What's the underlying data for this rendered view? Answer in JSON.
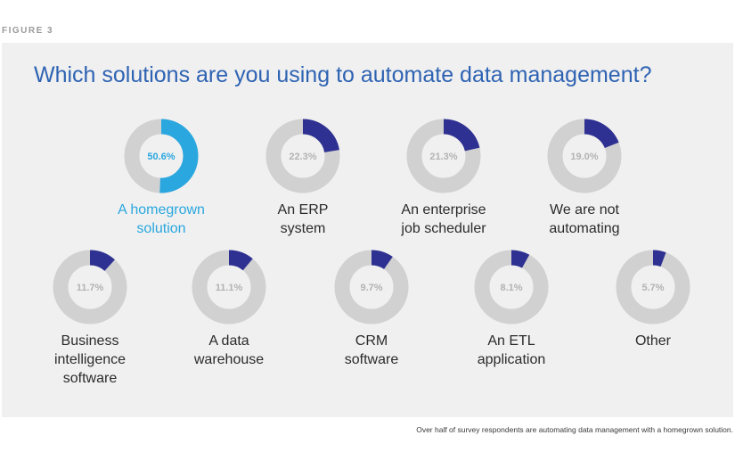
{
  "figure_label": "FIGURE 3",
  "caption": "Over half of survey respondents are automating data management with a homegrown solution.",
  "chart_data": {
    "type": "pie",
    "title": "Which solutions are you using to automate data management?",
    "unit": "%",
    "colors": {
      "highlight": "#2aa7df",
      "value": "#2e3192",
      "remainder": "#d1d1d1",
      "value_text": "#b3b3b3",
      "highlight_text": "#2aa7df"
    },
    "items": [
      {
        "label_lines": [
          "A homegrown",
          "solution"
        ],
        "value": 50.6,
        "display": "50.6%",
        "highlight": true
      },
      {
        "label_lines": [
          "An ERP",
          "system"
        ],
        "value": 22.3,
        "display": "22.3%",
        "highlight": false
      },
      {
        "label_lines": [
          "An enterprise",
          "job scheduler"
        ],
        "value": 21.3,
        "display": "21.3%",
        "highlight": false
      },
      {
        "label_lines": [
          "We are not",
          "automating"
        ],
        "value": 19.0,
        "display": "19.0%",
        "highlight": false
      },
      {
        "label_lines": [
          "Business",
          "intelligence",
          "software"
        ],
        "value": 11.7,
        "display": "11.7%",
        "highlight": false
      },
      {
        "label_lines": [
          "A data",
          "warehouse"
        ],
        "value": 11.1,
        "display": "11.1%",
        "highlight": false
      },
      {
        "label_lines": [
          "CRM",
          "software"
        ],
        "value": 9.7,
        "display": "9.7%",
        "highlight": false
      },
      {
        "label_lines": [
          "An ETL",
          "application"
        ],
        "value": 8.1,
        "display": "8.1%",
        "highlight": false
      },
      {
        "label_lines": [
          "Other"
        ],
        "value": 5.7,
        "display": "5.7%",
        "highlight": false
      }
    ]
  }
}
